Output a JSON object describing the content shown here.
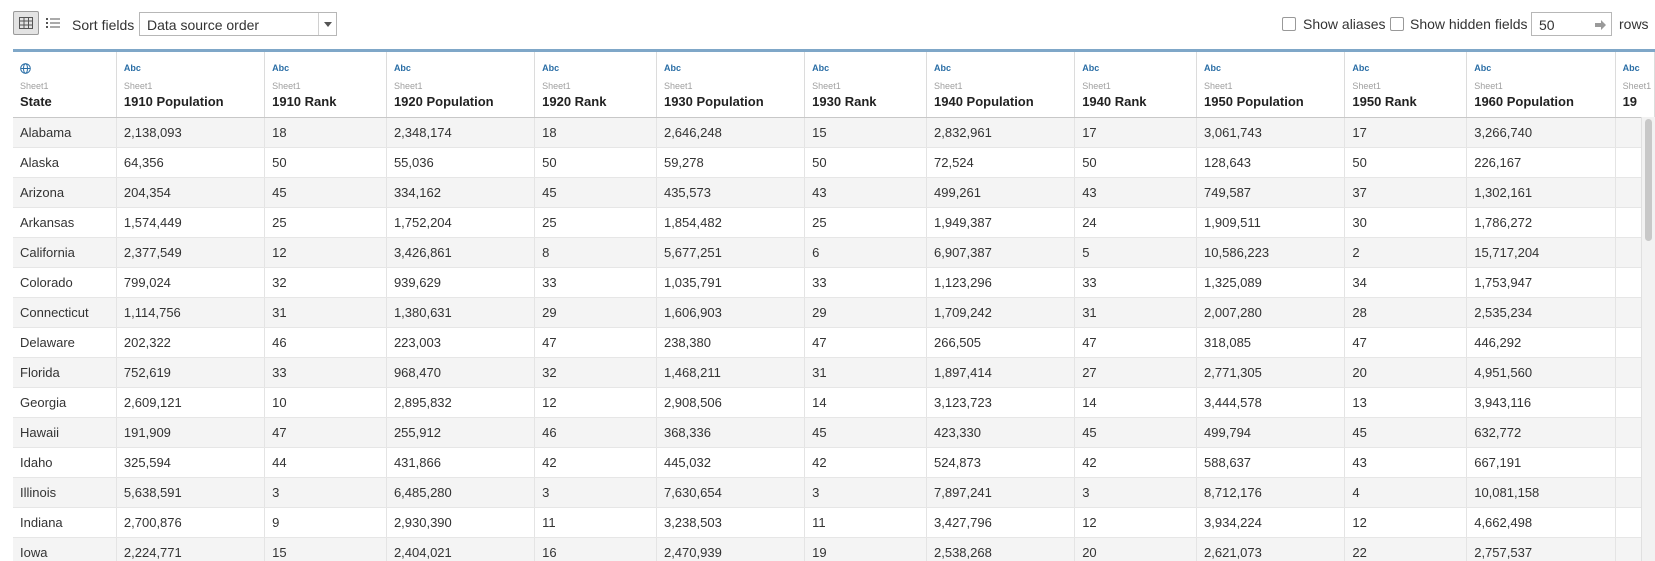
{
  "toolbar": {
    "sort_label": "Sort fields",
    "sort_value": "Data source order",
    "show_aliases_label": "Show aliases",
    "show_hidden_label": "Show hidden fields",
    "rows_value": "50",
    "rows_label": "rows"
  },
  "columns": [
    {
      "type": "globe",
      "type_label": "",
      "source": "Sheet1",
      "name": "State"
    },
    {
      "type": "text",
      "type_label": "Abc",
      "source": "Sheet1",
      "name": "1910 Population"
    },
    {
      "type": "text",
      "type_label": "Abc",
      "source": "Sheet1",
      "name": "1910 Rank"
    },
    {
      "type": "text",
      "type_label": "Abc",
      "source": "Sheet1",
      "name": "1920 Population"
    },
    {
      "type": "text",
      "type_label": "Abc",
      "source": "Sheet1",
      "name": "1920 Rank"
    },
    {
      "type": "text",
      "type_label": "Abc",
      "source": "Sheet1",
      "name": "1930 Population"
    },
    {
      "type": "text",
      "type_label": "Abc",
      "source": "Sheet1",
      "name": "1930 Rank"
    },
    {
      "type": "text",
      "type_label": "Abc",
      "source": "Sheet1",
      "name": "1940 Population"
    },
    {
      "type": "text",
      "type_label": "Abc",
      "source": "Sheet1",
      "name": "1940 Rank"
    },
    {
      "type": "text",
      "type_label": "Abc",
      "source": "Sheet1",
      "name": "1950 Population"
    },
    {
      "type": "text",
      "type_label": "Abc",
      "source": "Sheet1",
      "name": "1950 Rank"
    },
    {
      "type": "text",
      "type_label": "Abc",
      "source": "Sheet1",
      "name": "1960 Population"
    },
    {
      "type": "text",
      "type_label": "Abc",
      "source": "Sheet1",
      "name": "19"
    }
  ],
  "rows": [
    [
      "Alabama",
      "2,138,093",
      "18",
      "2,348,174",
      "18",
      "2,646,248",
      "15",
      "2,832,961",
      "17",
      "3,061,743",
      "17",
      "3,266,740",
      ""
    ],
    [
      "Alaska",
      "64,356",
      "50",
      "55,036",
      "50",
      "59,278",
      "50",
      "72,524",
      "50",
      "128,643",
      "50",
      "226,167",
      ""
    ],
    [
      "Arizona",
      "204,354",
      "45",
      "334,162",
      "45",
      "435,573",
      "43",
      "499,261",
      "43",
      "749,587",
      "37",
      "1,302,161",
      ""
    ],
    [
      "Arkansas",
      "1,574,449",
      "25",
      "1,752,204",
      "25",
      "1,854,482",
      "25",
      "1,949,387",
      "24",
      "1,909,511",
      "30",
      "1,786,272",
      ""
    ],
    [
      "California",
      "2,377,549",
      "12",
      "3,426,861",
      "8",
      "5,677,251",
      "6",
      "6,907,387",
      "5",
      "10,586,223",
      "2",
      "15,717,204",
      ""
    ],
    [
      "Colorado",
      "799,024",
      "32",
      "939,629",
      "33",
      "1,035,791",
      "33",
      "1,123,296",
      "33",
      "1,325,089",
      "34",
      "1,753,947",
      ""
    ],
    [
      "Connecticut",
      "1,114,756",
      "31",
      "1,380,631",
      "29",
      "1,606,903",
      "29",
      "1,709,242",
      "31",
      "2,007,280",
      "28",
      "2,535,234",
      ""
    ],
    [
      "Delaware",
      "202,322",
      "46",
      "223,003",
      "47",
      "238,380",
      "47",
      "266,505",
      "47",
      "318,085",
      "47",
      "446,292",
      ""
    ],
    [
      "Florida",
      "752,619",
      "33",
      "968,470",
      "32",
      "1,468,211",
      "31",
      "1,897,414",
      "27",
      "2,771,305",
      "20",
      "4,951,560",
      ""
    ],
    [
      "Georgia",
      "2,609,121",
      "10",
      "2,895,832",
      "12",
      "2,908,506",
      "14",
      "3,123,723",
      "14",
      "3,444,578",
      "13",
      "3,943,116",
      ""
    ],
    [
      "Hawaii",
      "191,909",
      "47",
      "255,912",
      "46",
      "368,336",
      "45",
      "423,330",
      "45",
      "499,794",
      "45",
      "632,772",
      ""
    ],
    [
      "Idaho",
      "325,594",
      "44",
      "431,866",
      "42",
      "445,032",
      "42",
      "524,873",
      "42",
      "588,637",
      "43",
      "667,191",
      ""
    ],
    [
      "Illinois",
      "5,638,591",
      "3",
      "6,485,280",
      "3",
      "7,630,654",
      "3",
      "7,897,241",
      "3",
      "8,712,176",
      "4",
      "10,081,158",
      ""
    ],
    [
      "Indiana",
      "2,700,876",
      "9",
      "2,930,390",
      "11",
      "3,238,503",
      "11",
      "3,427,796",
      "12",
      "3,934,224",
      "12",
      "4,662,498",
      ""
    ],
    [
      "Iowa",
      "2,224,771",
      "15",
      "2,404,021",
      "16",
      "2,470,939",
      "19",
      "2,538,268",
      "20",
      "2,621,073",
      "22",
      "2,757,537",
      ""
    ]
  ]
}
